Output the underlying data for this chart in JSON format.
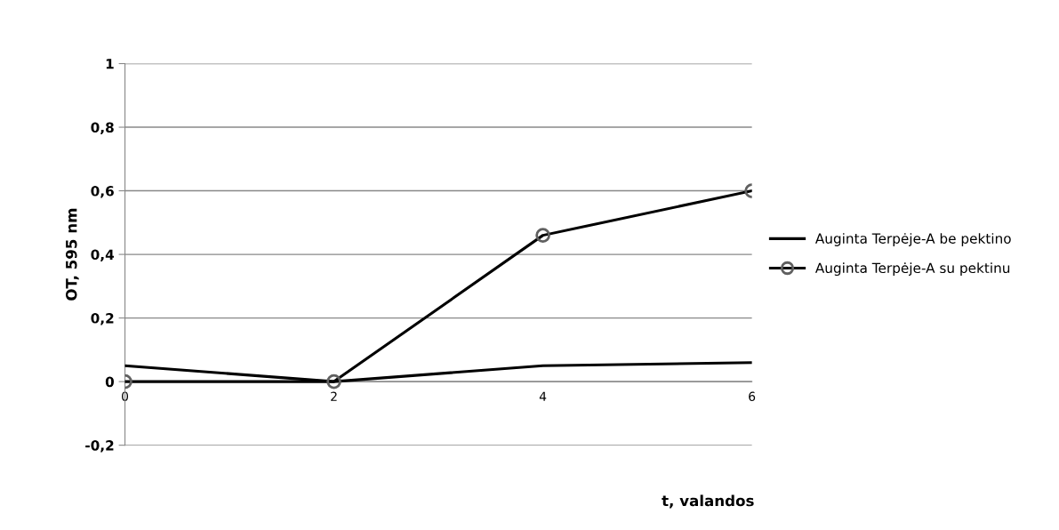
{
  "chart_data": {
    "type": "line",
    "xlabel": "t, valandos",
    "ylabel": "OT, 595 nm",
    "x": [
      0,
      2,
      4,
      6
    ],
    "series": [
      {
        "name": "Auginta Terpėje-A be pektino",
        "color": "#000000",
        "values": [
          0.05,
          0,
          0.05,
          0.06
        ],
        "marker": "none"
      },
      {
        "name": "Auginta Terpėje-A su pektinu",
        "color": "#000000",
        "values": [
          0,
          0,
          0.46,
          0.6
        ],
        "marker": "circle"
      }
    ],
    "xlim": [
      0,
      6
    ],
    "xticks": [
      0,
      2,
      4,
      6
    ],
    "ylim": [
      -0.2,
      1
    ],
    "yticks": [
      {
        "value": -0.2,
        "label": "-0,2"
      },
      0,
      {
        "value": 0.2,
        "label": "0,2"
      },
      {
        "value": 0.4,
        "label": "0,4"
      },
      {
        "value": 0.6,
        "label": "0,6"
      },
      {
        "value": 0.8,
        "label": "0,8"
      },
      1
    ],
    "grid": "y",
    "legend": "right",
    "line_style": "solid"
  }
}
